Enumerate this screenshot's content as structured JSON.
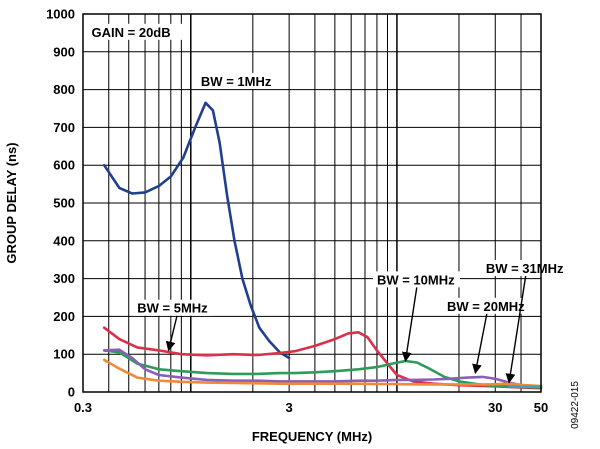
{
  "chart_data": {
    "type": "line",
    "title": "",
    "xlabel": "FREQUENCY (MHz)",
    "ylabel": "GROUP DELAY (ns)",
    "x_scale": "log",
    "xlim": [
      0.3,
      50
    ],
    "ylim": [
      0,
      1000
    ],
    "x_ticks": [
      0.3,
      3,
      30,
      50
    ],
    "x_tick_labels": [
      "0.3",
      "3",
      "30",
      "50"
    ],
    "y_ticks": [
      0,
      100,
      200,
      300,
      400,
      500,
      600,
      700,
      800,
      900,
      1000
    ],
    "grid": true,
    "figure_id": "09422-015",
    "annotations": [
      {
        "text": "GAIN = 20dB",
        "x": 0.33,
        "y": 945,
        "box": true
      },
      {
        "text": "BW = 1MHz",
        "x": 1.12,
        "y": 815,
        "box": true
      },
      {
        "text": "BW = 5MHz",
        "x": 0.55,
        "y": 215,
        "box": true,
        "arrow_to": {
          "x": 0.78,
          "y": 110
        }
      },
      {
        "text": "BW = 10MHz",
        "x": 8.0,
        "y": 290,
        "box": true,
        "arrow_to": {
          "x": 11.0,
          "y": 82
        }
      },
      {
        "text": "BW = 20MHz",
        "x": 17.5,
        "y": 220,
        "box": true,
        "arrow_to": {
          "x": 24.0,
          "y": 50
        }
      },
      {
        "text": "BW = 31MHz",
        "x": 27.0,
        "y": 320,
        "box": true,
        "arrow_to": {
          "x": 35.0,
          "y": 25
        }
      }
    ],
    "series": [
      {
        "name": "BW = 1MHz",
        "color": "#1f3f8f",
        "x": [
          0.38,
          0.45,
          0.52,
          0.6,
          0.7,
          0.8,
          0.92,
          1.05,
          1.18,
          1.28,
          1.38,
          1.5,
          1.63,
          1.78,
          1.95,
          2.15,
          2.4,
          2.7,
          3.0
        ],
        "y": [
          600,
          540,
          525,
          528,
          545,
          570,
          620,
          700,
          765,
          745,
          660,
          520,
          400,
          300,
          230,
          170,
          135,
          105,
          90
        ]
      },
      {
        "name": "BW = 5MHz",
        "color": "#d9314a",
        "x": [
          0.38,
          0.45,
          0.55,
          0.7,
          0.9,
          1.2,
          1.6,
          2.1,
          2.7,
          3.2,
          4.0,
          5.0,
          5.8,
          6.5,
          7.2,
          8.0,
          9.0,
          10.0,
          12.0,
          15.0,
          20.0,
          30.0,
          40.0,
          50.0
        ],
        "y": [
          170,
          140,
          118,
          110,
          100,
          97,
          100,
          98,
          103,
          108,
          122,
          140,
          155,
          158,
          145,
          110,
          75,
          45,
          28,
          22,
          18,
          15,
          12,
          10
        ]
      },
      {
        "name": "BW = 10MHz",
        "color": "#2f9b5a",
        "x": [
          0.38,
          0.45,
          0.55,
          0.7,
          0.9,
          1.2,
          1.6,
          2.1,
          2.7,
          3.2,
          4.0,
          5.0,
          6.5,
          8.0,
          9.5,
          11.0,
          12.5,
          14.0,
          17.0,
          20.0,
          25.0,
          30.0,
          40.0,
          50.0
        ],
        "y": [
          110,
          105,
          75,
          60,
          55,
          50,
          48,
          48,
          50,
          50,
          52,
          55,
          60,
          66,
          75,
          82,
          78,
          65,
          40,
          28,
          20,
          16,
          14,
          12
        ]
      },
      {
        "name": "BW = 20MHz",
        "color": "#8a5fb8",
        "x": [
          0.38,
          0.45,
          0.52,
          0.6,
          0.7,
          0.9,
          1.2,
          1.6,
          2.1,
          2.7,
          3.2,
          4.0,
          5.0,
          6.5,
          8.0,
          10.0,
          12.0,
          15.0,
          18.0,
          22.0,
          26.0,
          30.0,
          35.0,
          40.0,
          50.0
        ],
        "y": [
          110,
          112,
          90,
          60,
          45,
          38,
          32,
          30,
          30,
          28,
          28,
          28,
          28,
          30,
          30,
          32,
          32,
          33,
          35,
          38,
          40,
          35,
          25,
          18,
          14
        ]
      },
      {
        "name": "BW = 31MHz",
        "color": "#f0893a",
        "x": [
          0.38,
          0.45,
          0.55,
          0.7,
          0.9,
          1.2,
          1.6,
          2.1,
          2.7,
          3.2,
          4.0,
          5.0,
          6.5,
          8.0,
          10.0,
          13.0,
          17.0,
          22.0,
          28.0,
          35.0,
          42.0,
          50.0
        ],
        "y": [
          85,
          62,
          38,
          30,
          27,
          25,
          24,
          23,
          22,
          22,
          22,
          22,
          22,
          21,
          21,
          20,
          20,
          20,
          20,
          22,
          18,
          16
        ]
      },
      {
        "name": "",
        "color": "#3aa7b8",
        "x": [
          35.0,
          40.0,
          45.0,
          50.0
        ],
        "y": [
          15,
          14,
          14,
          14
        ]
      }
    ]
  }
}
